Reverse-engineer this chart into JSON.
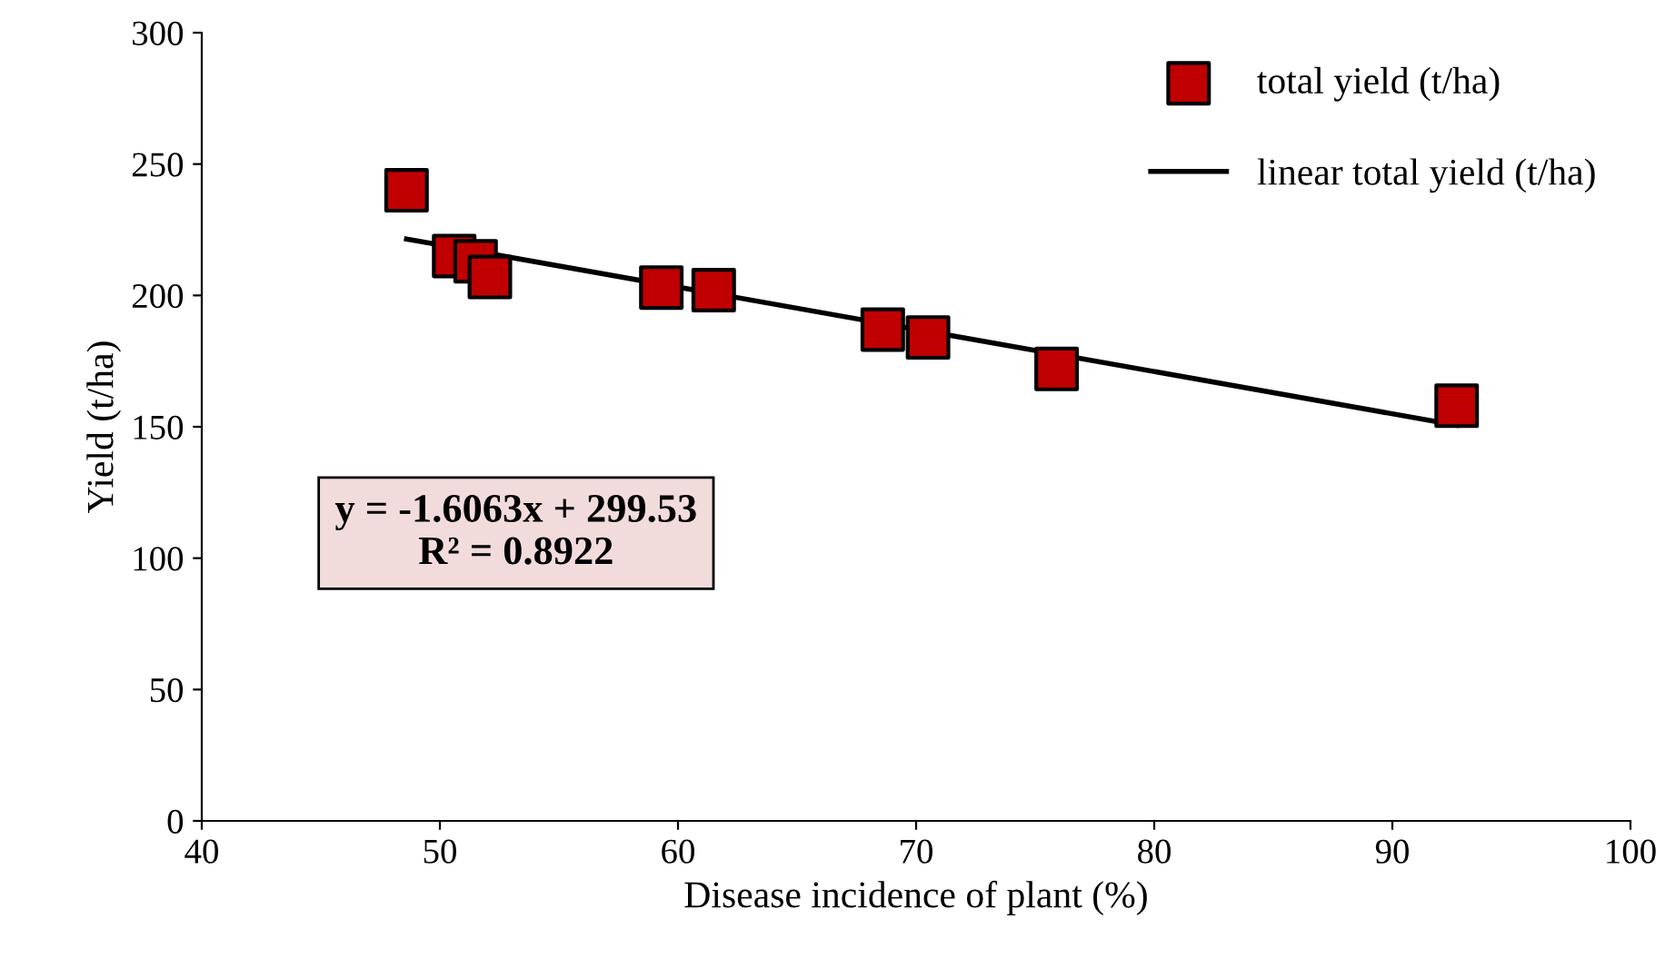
{
  "chart_data": {
    "type": "scatter",
    "xlabel": "Disease incidence of plant (%)",
    "ylabel": "Yield (t/ha)",
    "xlim": [
      40,
      100
    ],
    "xticks": [
      40,
      50,
      60,
      70,
      80,
      90,
      100
    ],
    "ylim": [
      0,
      300
    ],
    "yticks": [
      0,
      50,
      100,
      150,
      200,
      250,
      300
    ],
    "grid": false,
    "legend": "top right",
    "line_style": "solid",
    "series": [
      {
        "name": "total yield (t/ha)",
        "marker": "square",
        "color": "#c00000",
        "x": [
          48.6,
          50.6,
          51.5,
          52.1,
          59.3,
          61.5,
          68.6,
          70.5,
          75.9,
          92.7
        ],
        "values": [
          240,
          215,
          213,
          207,
          203,
          202,
          187,
          184,
          172,
          158
        ]
      },
      {
        "name": "linear total yield (t/ha)",
        "type": "line",
        "color": "#000000",
        "x": [
          48.6,
          92.7
        ],
        "values": [
          221.5,
          150.6
        ]
      }
    ],
    "annotations": [
      "y = -1.6063x + 299.53\nR² = 0.8922"
    ]
  }
}
